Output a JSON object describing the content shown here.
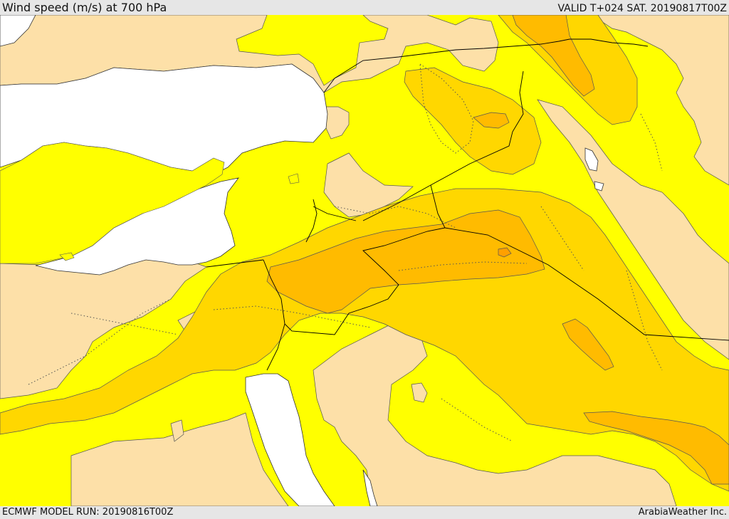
{
  "header": {
    "title": "Wind speed (m/s) at 700 hPa",
    "valid": "VALID T+024 SAT. 20190817T00Z"
  },
  "footer": {
    "model_run": "ECMWF MODEL RUN: 20190816T00Z",
    "credit": "ArabiaWeather Inc."
  },
  "colors": {
    "water": "#ffffff",
    "calm": "#fde0a8",
    "level_1": "#ffff00",
    "level_2": "#ffd700",
    "level_3": "#ffbb00",
    "level_4": "#ffa000",
    "contour": "#555555",
    "border": "#000000"
  }
}
